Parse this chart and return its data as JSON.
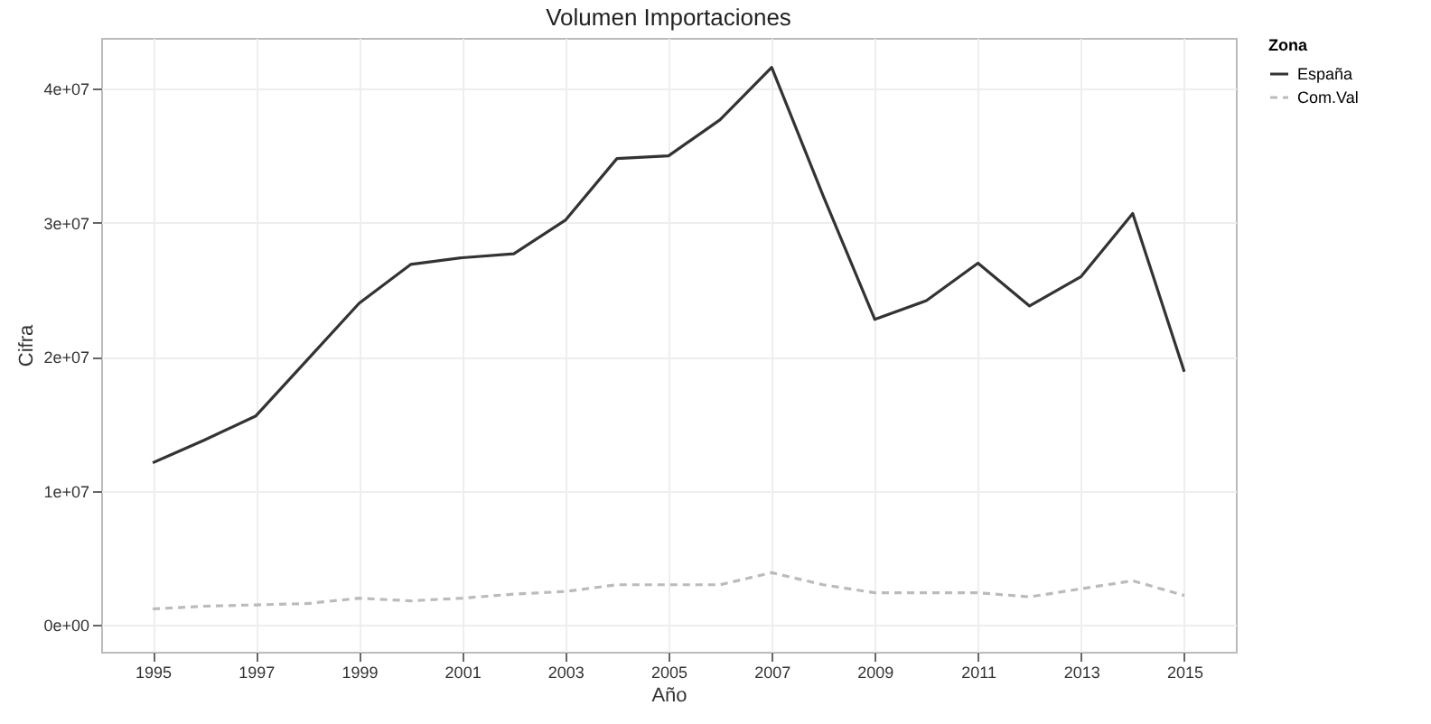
{
  "chart_data": {
    "type": "line",
    "title": "Volumen Importaciones",
    "xlabel": "Año",
    "ylabel": "Cifra",
    "legend_title": "Zona",
    "legend": "right",
    "grid": true,
    "x": [
      1995,
      1996,
      1997,
      1998,
      1999,
      2000,
      2001,
      2002,
      2003,
      2004,
      2005,
      2006,
      2007,
      2008,
      2009,
      2010,
      2011,
      2012,
      2013,
      2014,
      2015
    ],
    "xlim": [
      1994,
      2016
    ],
    "xticks": [
      1995,
      1997,
      1999,
      2001,
      2003,
      2005,
      2007,
      2009,
      2011,
      2013,
      2015
    ],
    "ylim": [
      -2000000,
      43800000
    ],
    "yticks": [
      {
        "value": 0,
        "label": "0e+00"
      },
      {
        "value": 10000000,
        "label": "1e+07"
      },
      {
        "value": 20000000,
        "label": "2e+07"
      },
      {
        "value": 30000000,
        "label": "3e+07"
      },
      {
        "value": 40000000,
        "label": "4e+07"
      }
    ],
    "series": [
      {
        "name": "España",
        "color": "#333333",
        "line_style": "solid",
        "values": [
          12100000,
          13800000,
          15600000,
          19800000,
          24000000,
          26900000,
          27400000,
          27700000,
          30200000,
          34800000,
          35000000,
          37700000,
          41600000,
          32000000,
          22800000,
          24200000,
          27000000,
          23800000,
          26000000,
          30700000,
          18900000
        ]
      },
      {
        "name": "Com.Val",
        "color": "#bbbbbb",
        "line_style": "dashed",
        "values": [
          1200000,
          1400000,
          1500000,
          1600000,
          2000000,
          1800000,
          2000000,
          2300000,
          2500000,
          3000000,
          3000000,
          3000000,
          3900000,
          3000000,
          2400000,
          2400000,
          2400000,
          2100000,
          2700000,
          3300000,
          2200000
        ]
      }
    ]
  }
}
